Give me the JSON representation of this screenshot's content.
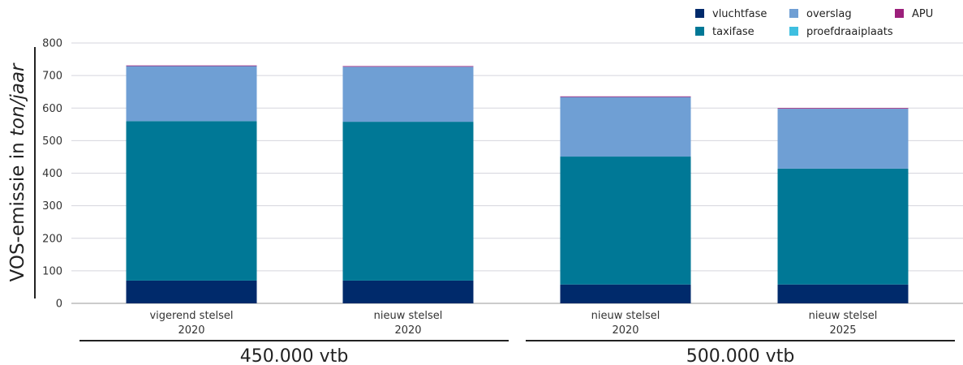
{
  "chart_data": {
    "type": "bar",
    "stacked": true,
    "categories": [
      {
        "line1": "vigerend stelsel",
        "line2": "2020"
      },
      {
        "line1": "nieuw stelsel",
        "line2": "2020"
      },
      {
        "line1": "nieuw stelsel",
        "line2": "2020"
      },
      {
        "line1": "nieuw stelsel",
        "line2": "2025"
      }
    ],
    "category_groups": [
      {
        "label": "450.000 vtb",
        "categories": [
          0,
          1
        ]
      },
      {
        "label": "500.000 vtb",
        "categories": [
          2,
          3
        ]
      }
    ],
    "series": [
      {
        "name": "vluchtfase",
        "color": "#002a6b",
        "values": [
          70,
          70,
          58,
          58
        ]
      },
      {
        "name": "taxifase",
        "color": "#007896",
        "values": [
          490,
          488,
          393,
          356
        ]
      },
      {
        "name": "proefdraaiplaats",
        "color": "#3fbfe0",
        "values": [
          0,
          0,
          0,
          0
        ]
      },
      {
        "name": "overslag",
        "color": "#6f9fd4",
        "values": [
          169,
          169,
          183,
          184
        ]
      },
      {
        "name": "APU",
        "color": "#9c1f7b",
        "values": [
          2,
          2,
          2,
          2
        ]
      }
    ],
    "legend_order": [
      "vluchtfase",
      "overslag",
      "APU",
      "taxifase",
      "proefdraaiplaats"
    ],
    "legend_position": "top-right",
    "ylabel_prefix": "VOS-emissie in ",
    "ylabel_unit": "ton/jaar",
    "ylim": [
      0,
      800
    ],
    "yticks": [
      0,
      100,
      200,
      300,
      400,
      500,
      600,
      700,
      800
    ],
    "grid": true
  }
}
